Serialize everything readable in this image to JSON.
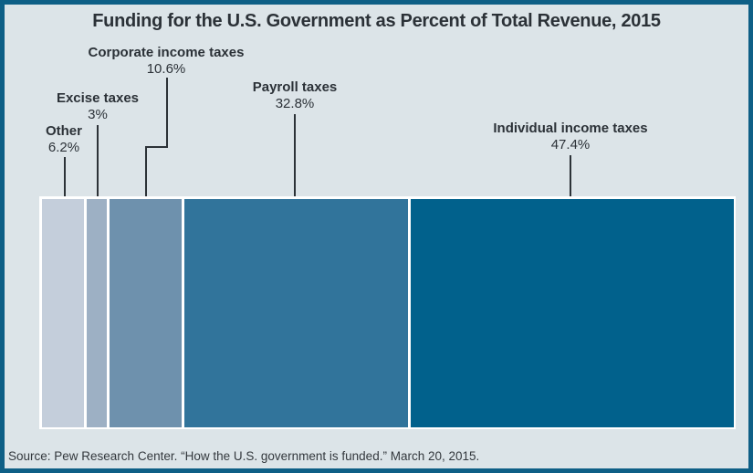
{
  "title": "Funding for the U.S. Government as Percent of Total Revenue, 2015",
  "source": "Source: Pew Research Center. “How the U.S. government is funded.” March 20, 2015.",
  "theme": {
    "frame-border": "#0e5f86",
    "canvas-bg": "#dce4e8",
    "bar-outline": "#ffffff",
    "leader-line": "#2c3237",
    "text": "#2b3137"
  },
  "chart_data": {
    "type": "bar",
    "subtype": "proportional-stacked-horizontal",
    "title": "Funding for the U.S. Government as Percent of Total Revenue, 2015",
    "categories": [
      "Other",
      "Excise taxes",
      "Corporate income taxes",
      "Payroll taxes",
      "Individual income taxes"
    ],
    "keys": [
      "other",
      "excise-taxes",
      "corporate-income-taxes",
      "payroll-taxes",
      "individual-income-taxes"
    ],
    "values": [
      6.2,
      3,
      10.6,
      32.8,
      47.4
    ],
    "value_labels": [
      "6.2%",
      "3%",
      "10.6%",
      "32.8%",
      "47.4%"
    ],
    "colors": [
      "#c4cedb",
      "#9db0c4",
      "#6e91ad",
      "#31749b",
      "#01618c"
    ],
    "unit": "%",
    "total": 100,
    "xlabel": "",
    "ylabel": "",
    "legend": "none",
    "grid": false,
    "source": "Source: Pew Research Center. “How the U.S. government is funded.” March 20, 2015."
  }
}
